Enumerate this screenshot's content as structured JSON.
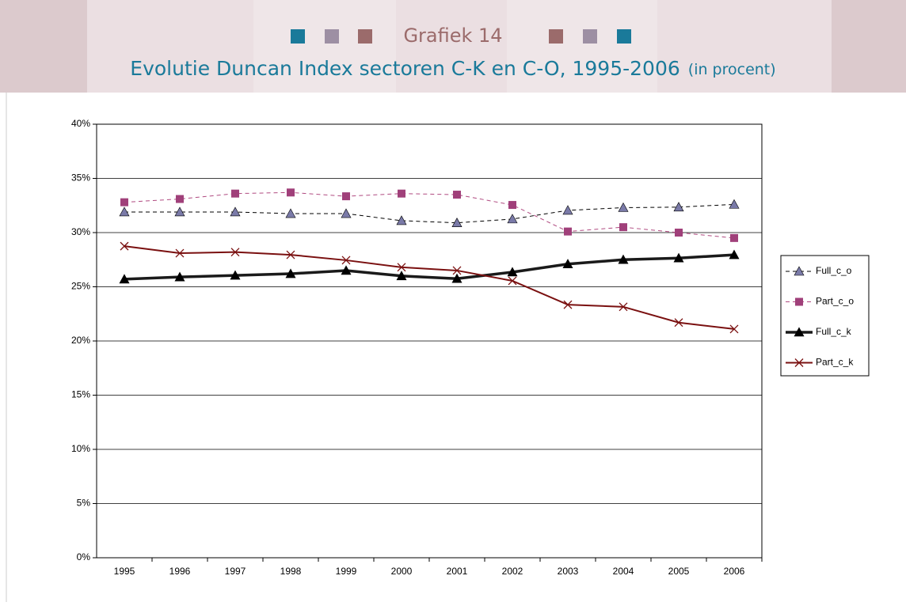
{
  "chart_data": {
    "type": "line",
    "title": "Grafiek 14",
    "subtitle": "Evolutie Duncan Index sectoren C-K en C-O, 1995-2006",
    "unit_note": "(in procent)",
    "categories": [
      "1995",
      "1996",
      "1997",
      "1998",
      "1999",
      "2000",
      "2001",
      "2002",
      "2003",
      "2004",
      "2005",
      "2006"
    ],
    "series": [
      {
        "name": "Full_c_o",
        "color": "#000000",
        "marker_color": "#7a7aa8",
        "marker": "triangle",
        "dashed": true,
        "width": 1,
        "values": [
          31.9,
          31.9,
          31.9,
          31.75,
          31.75,
          31.1,
          30.9,
          31.25,
          32.05,
          32.3,
          32.35,
          32.6
        ]
      },
      {
        "name": "Part_c_o",
        "color": "#b04a80",
        "marker_color": "#a0407a",
        "marker": "square",
        "dashed": true,
        "width": 1,
        "values": [
          32.8,
          33.1,
          33.6,
          33.7,
          33.35,
          33.6,
          33.5,
          32.55,
          30.1,
          30.5,
          30.0,
          29.5
        ]
      },
      {
        "name": "Full_c_k",
        "color": "#1a1a1a",
        "marker_color": "#000000",
        "marker": "triangle",
        "dashed": false,
        "width": 3.5,
        "values": [
          25.7,
          25.9,
          26.05,
          26.2,
          26.5,
          26.0,
          25.75,
          26.35,
          27.1,
          27.5,
          27.65,
          27.95
        ]
      },
      {
        "name": "Part_c_k",
        "color": "#7a1010",
        "marker_color": "#7a1010",
        "marker": "x",
        "dashed": false,
        "width": 2,
        "values": [
          28.75,
          28.1,
          28.2,
          27.95,
          27.45,
          26.8,
          26.5,
          25.55,
          23.35,
          23.15,
          21.7,
          21.1
        ]
      }
    ],
    "ylim": [
      0,
      40
    ],
    "yticks": [
      {
        "value": 0,
        "label": "0%"
      },
      {
        "value": 5,
        "label": "5%"
      },
      {
        "value": 10,
        "label": "10%"
      },
      {
        "value": 15,
        "label": "15%"
      },
      {
        "value": 20,
        "label": "20%"
      },
      {
        "value": 25,
        "label": "25%"
      },
      {
        "value": 30,
        "label": "30%"
      },
      {
        "value": 35,
        "label": "35%"
      },
      {
        "value": 40,
        "label": "40%"
      }
    ],
    "grid": true,
    "legend": "right"
  }
}
